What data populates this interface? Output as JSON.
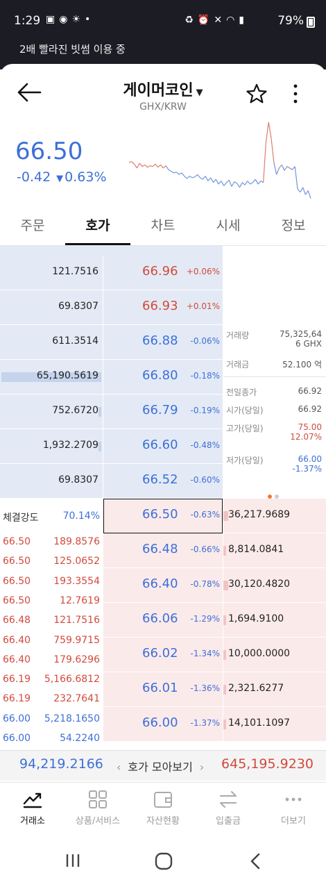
{
  "status_bar": {
    "time": "1:29",
    "battery": "79%",
    "left_icons": [
      "gallery-icon",
      "app-icon",
      "weather-icon",
      "dot-icon"
    ],
    "right_icons": [
      "recycle-icon",
      "alarm-icon",
      "mute-icon",
      "wifi-icon",
      "hd-voice-icon",
      "signal-icon"
    ]
  },
  "notice": "2배 빨라진 빗썸 이용 중",
  "header": {
    "title": "게이머코인",
    "pair": "GHX/KRW"
  },
  "summary": {
    "price": "66.50",
    "change": "-0.42",
    "change_pct": "0.63%"
  },
  "sparkline": {
    "values": [
      66.95,
      66.96,
      66.93,
      66.88,
      66.94,
      66.9,
      66.92,
      66.89,
      66.91,
      66.9,
      66.93,
      66.89,
      66.92,
      66.88,
      66.91,
      66.86,
      66.84,
      66.82,
      66.83,
      66.8,
      66.82,
      66.78,
      66.75,
      66.78,
      66.76,
      66.77,
      66.8,
      66.76,
      66.74,
      66.78,
      66.72,
      66.76,
      66.7,
      66.74,
      66.68,
      66.72,
      66.66,
      66.7,
      66.73,
      66.65,
      66.71,
      66.69,
      66.64,
      66.7,
      66.67,
      66.72,
      66.68,
      66.7,
      66.74,
      66.68,
      66.72,
      66.7,
      67.2,
      67.45,
      67.25,
      66.95,
      66.8,
      66.88,
      66.92,
      66.85,
      66.9,
      66.88,
      66.86,
      66.9,
      66.62,
      66.58,
      66.64,
      66.55,
      66.6,
      66.5
    ],
    "color_up": "#e07a6e",
    "color_down": "#6f95dc"
  },
  "tabs": [
    "주문",
    "호가",
    "차트",
    "시세",
    "정보"
  ],
  "asks": [
    {
      "qty": "121.7516",
      "price": "66.96",
      "pct": "+0.06%",
      "dir": "up",
      "bar": 0
    },
    {
      "qty": "69.8307",
      "price": "66.93",
      "pct": "+0.01%",
      "dir": "up",
      "bar": 0
    },
    {
      "qty": "611.3514",
      "price": "66.88",
      "pct": "-0.06%",
      "dir": "down",
      "bar": 0
    },
    {
      "qty": "65,190.5619",
      "price": "66.80",
      "pct": "-0.18%",
      "dir": "down",
      "bar": 1.0
    },
    {
      "qty": "752.6720",
      "price": "66.79",
      "pct": "-0.19%",
      "dir": "down",
      "bar": 0.01
    },
    {
      "qty": "1,932.2709",
      "price": "66.60",
      "pct": "-0.48%",
      "dir": "down",
      "bar": 0.03
    },
    {
      "qty": "69.8307",
      "price": "66.52",
      "pct": "-0.60%",
      "dir": "down",
      "bar": 0
    }
  ],
  "bids": [
    {
      "price": "66.50",
      "pct": "-0.63%",
      "qty": "36,217.9689",
      "bar": 0.05
    },
    {
      "price": "66.48",
      "pct": "-0.66%",
      "qty": "8,814.0841",
      "bar": 0.02
    },
    {
      "price": "66.40",
      "pct": "-0.78%",
      "qty": "30,120.4820",
      "bar": 0.05
    },
    {
      "price": "66.06",
      "pct": "-1.29%",
      "qty": "1,694.9100",
      "bar": 0.005
    },
    {
      "price": "66.02",
      "pct": "-1.34%",
      "qty": "10,000.0000",
      "bar": 0.02
    },
    {
      "price": "66.01",
      "pct": "-1.36%",
      "qty": "2,321.6277",
      "bar": 0.005
    },
    {
      "price": "66.00",
      "pct": "-1.37%",
      "qty": "14,101.1097",
      "bar": 0.03
    }
  ],
  "stats": {
    "volume_label": "거래량",
    "volume_value_1": "75,325,64",
    "volume_value_2": "6 GHX",
    "amount_label": "거래금",
    "amount_value": "52.100 억",
    "prev_close_label": "전일종가",
    "prev_close_value": "66.92",
    "open_label": "시가(당일)",
    "open_value": "66.92",
    "high_label": "고가(당일)",
    "high_value": "75.00",
    "high_pct": "12.07%",
    "low_label": "저가(당일)",
    "low_value": "66.00",
    "low_pct": "-1.37%"
  },
  "strength": {
    "label": "체결강도",
    "value": "70.14%"
  },
  "trades": [
    {
      "price": "66.50",
      "qty": "189.8576",
      "dir": "up"
    },
    {
      "price": "66.50",
      "qty": "125.0652",
      "dir": "up"
    },
    {
      "price": "66.50",
      "qty": "193.3554",
      "dir": "up"
    },
    {
      "price": "66.50",
      "qty": "12.7619",
      "dir": "up"
    },
    {
      "price": "66.48",
      "qty": "121.7516",
      "dir": "up"
    },
    {
      "price": "66.40",
      "qty": "759.9715",
      "dir": "up"
    },
    {
      "price": "66.40",
      "qty": "179.6296",
      "dir": "up"
    },
    {
      "price": "66.19",
      "qty": "5,166.6812",
      "dir": "up"
    },
    {
      "price": "66.19",
      "qty": "232.7641",
      "dir": "up"
    },
    {
      "price": "66.00",
      "qty": "5,218.1650",
      "dir": "down"
    },
    {
      "price": "66.00",
      "qty": "54.2240",
      "dir": "down"
    }
  ],
  "footer": {
    "total_ask": "94,219.2166",
    "gather_label": "호가 모아보기",
    "total_bid": "645,195.9230"
  },
  "nav": [
    {
      "label": "거래소",
      "icon": "trend-chart-icon",
      "active": true
    },
    {
      "label": "상품/서비스",
      "icon": "grid-icon",
      "active": false
    },
    {
      "label": "자산현황",
      "icon": "wallet-icon",
      "active": false
    },
    {
      "label": "입출금",
      "icon": "transfer-icon",
      "active": false
    },
    {
      "label": "더보기",
      "icon": "more-dots-icon",
      "active": false
    }
  ],
  "colors": {
    "up": "#d24a3c",
    "down": "#3d6fd8",
    "ask_bg": "#e3eaf5",
    "bid_bg": "#fbeaea"
  }
}
